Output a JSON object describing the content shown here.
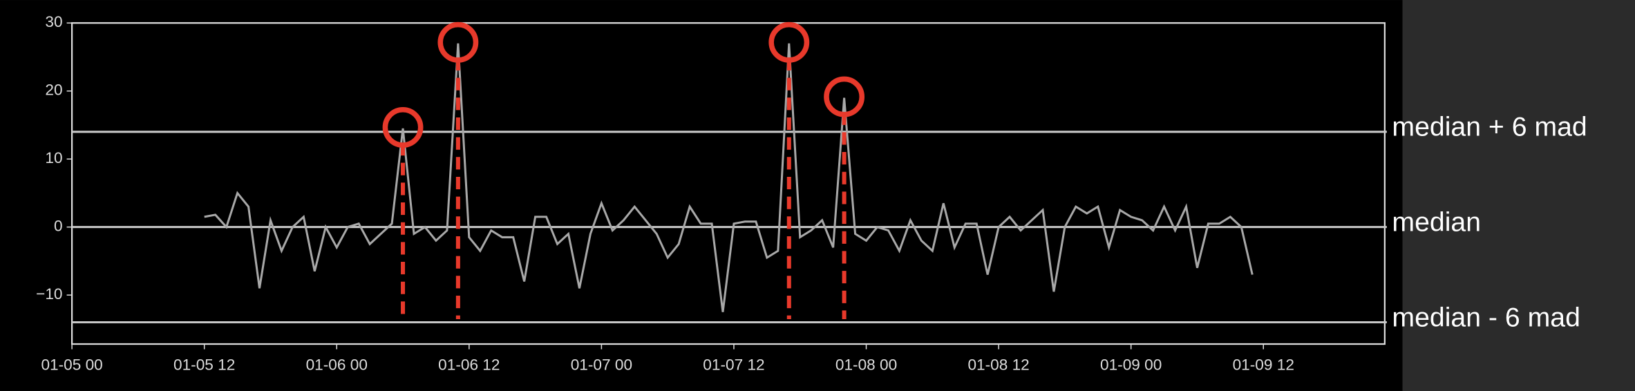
{
  "chart_data": {
    "type": "line",
    "x": [
      "01-05 12",
      "01-05 13",
      "01-05 14",
      "01-05 15",
      "01-05 16",
      "01-05 17",
      "01-05 18",
      "01-05 19",
      "01-05 20",
      "01-05 21",
      "01-05 22",
      "01-05 23",
      "01-06 00",
      "01-06 01",
      "01-06 02",
      "01-06 03",
      "01-06 04",
      "01-06 05",
      "01-06 06",
      "01-06 07",
      "01-06 08",
      "01-06 09",
      "01-06 10",
      "01-06 11",
      "01-06 12",
      "01-06 13",
      "01-06 14",
      "01-06 15",
      "01-06 16",
      "01-06 17",
      "01-06 18",
      "01-06 19",
      "01-06 20",
      "01-06 21",
      "01-06 22",
      "01-06 23",
      "01-07 00",
      "01-07 01",
      "01-07 02",
      "01-07 03",
      "01-07 04",
      "01-07 05",
      "01-07 06",
      "01-07 07",
      "01-07 08",
      "01-07 09",
      "01-07 10",
      "01-07 11",
      "01-07 12",
      "01-07 13",
      "01-07 14",
      "01-07 15",
      "01-07 16",
      "01-07 17",
      "01-07 18",
      "01-07 19",
      "01-07 20",
      "01-07 21",
      "01-07 22",
      "01-07 23",
      "01-08 00",
      "01-08 01",
      "01-08 02",
      "01-08 03",
      "01-08 04",
      "01-08 05",
      "01-08 06",
      "01-08 07",
      "01-08 08",
      "01-08 09",
      "01-08 10",
      "01-08 11",
      "01-08 12",
      "01-08 13",
      "01-08 14",
      "01-08 15",
      "01-08 16",
      "01-08 17",
      "01-08 18",
      "01-08 19",
      "01-08 20",
      "01-08 21",
      "01-08 22",
      "01-08 23",
      "01-09 00",
      "01-09 01",
      "01-09 02",
      "01-09 03",
      "01-09 04",
      "01-09 05",
      "01-09 06",
      "01-09 07",
      "01-09 08",
      "01-09 09",
      "01-09 10",
      "01-09 11"
    ],
    "values": [
      1.5,
      1.8,
      0,
      5,
      3,
      -9,
      1,
      -3.5,
      0,
      1.5,
      -6.5,
      0,
      -3,
      0,
      0.5,
      -2.5,
      -1,
      0.5,
      14.5,
      -1,
      0,
      -2,
      -0.5,
      27,
      -1.5,
      -3.5,
      -0.5,
      -1.5,
      -1.5,
      -8,
      1.5,
      1.5,
      -2.5,
      -1,
      -9,
      -1,
      3.5,
      -0.5,
      1,
      3,
      1,
      -1,
      -4.5,
      -2.5,
      3,
      0.5,
      0.5,
      -12.5,
      0.5,
      0.8,
      0.8,
      -4.5,
      -3.5,
      27,
      -1.5,
      -0.5,
      1,
      -3,
      19,
      -1,
      -2,
      0,
      -0.5,
      -3.5,
      1,
      -2,
      -3.5,
      3.5,
      -3,
      0.5,
      0.5,
      -7,
      0,
      1.5,
      -0.5,
      1,
      2.5,
      -9.5,
      0,
      3,
      2,
      3,
      -3,
      2.5,
      1.5,
      1,
      -0.5,
      3,
      -0.5,
      3,
      -6,
      0.5,
      0.5,
      1.5,
      0,
      -7
    ],
    "color": "#a8a8a8",
    "highlight_color": "#e8392b",
    "xlim": [
      "01-05 00",
      "01-09 23"
    ],
    "xticks": [
      "01-05 00",
      "01-05 12",
      "01-06 00",
      "01-06 12",
      "01-07 00",
      "01-07 12",
      "01-08 00",
      "01-08 12",
      "01-09 00",
      "01-09 12"
    ],
    "ylim": [
      -17.2,
      30
    ],
    "yticks": [
      {
        "value": -10,
        "label": "−10"
      },
      0,
      10,
      20,
      30
    ],
    "reference_lines": [
      {
        "value": 14,
        "label": "median + 6 mad"
      },
      {
        "value": 0,
        "label": "median"
      },
      {
        "value": -14,
        "label": "median - 6 mad"
      }
    ]
  }
}
